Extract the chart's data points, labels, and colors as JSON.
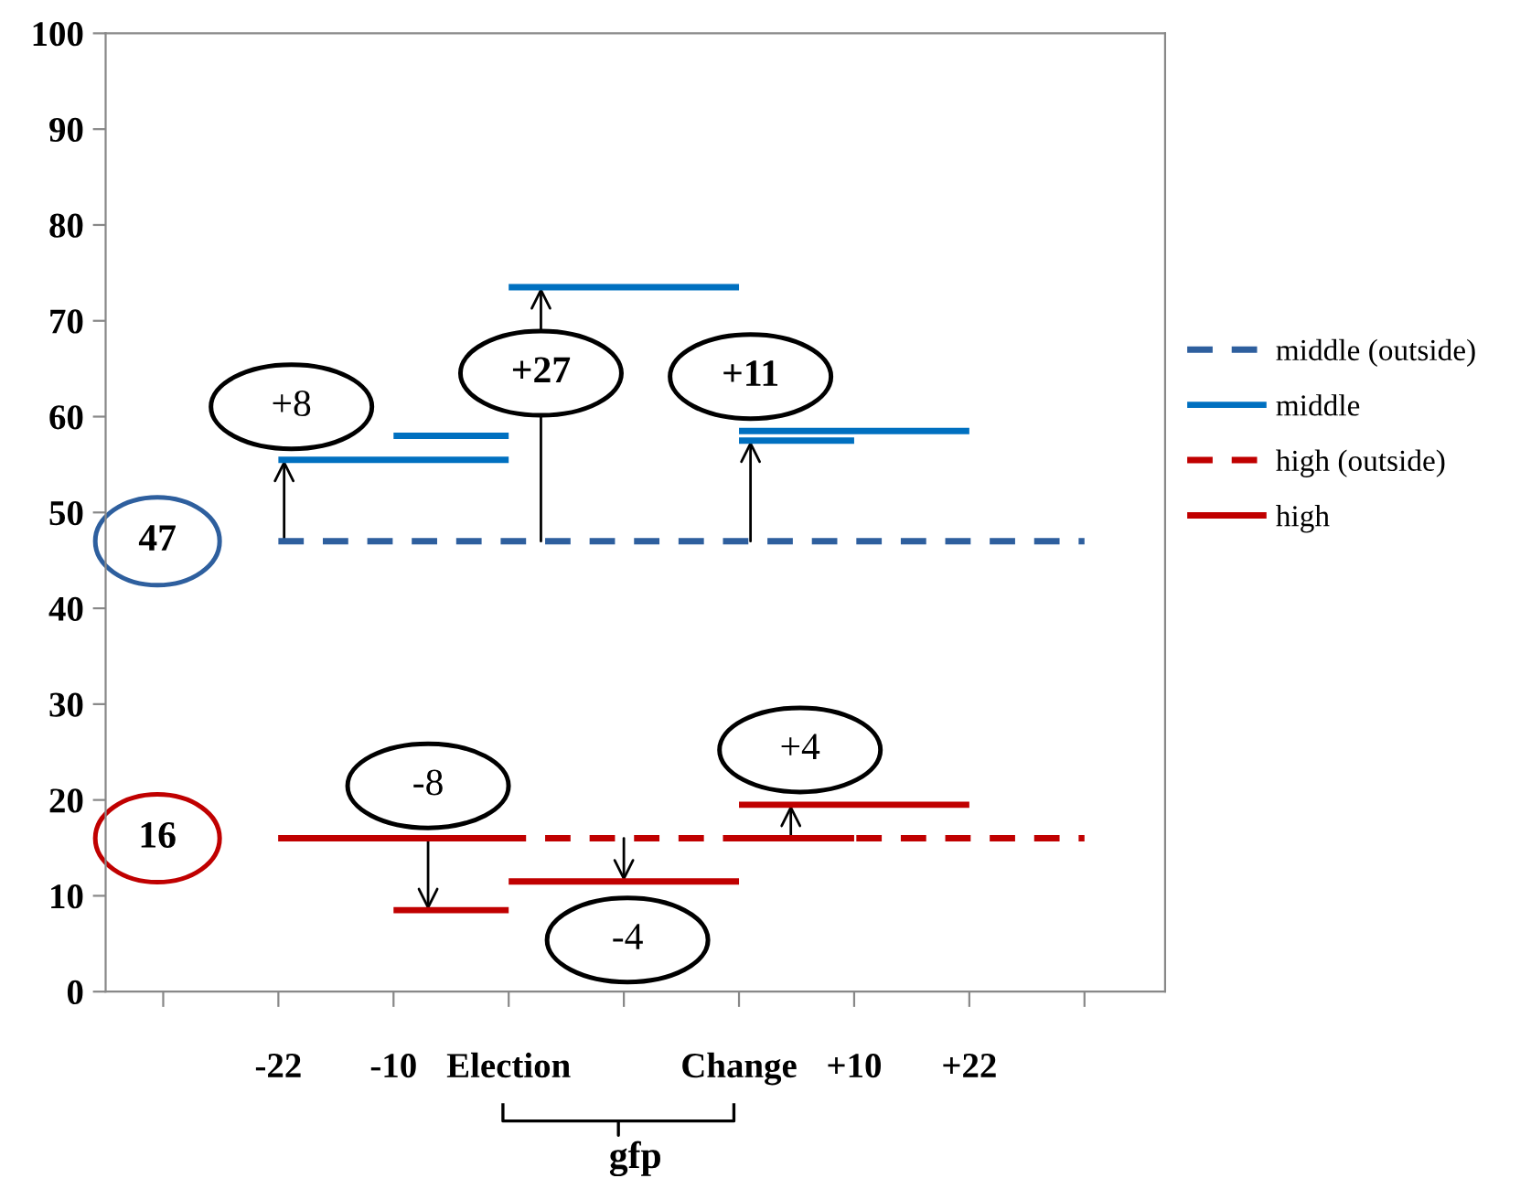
{
  "chart_data": {
    "type": "line",
    "xlabel": "gfp",
    "categories": [
      null,
      "-22",
      "-10",
      "Election",
      null,
      "Change",
      "+10",
      "+22",
      null
    ],
    "ylim": [
      0,
      100
    ],
    "yticks": [
      0,
      10,
      20,
      30,
      40,
      50,
      60,
      70,
      80,
      90,
      100
    ],
    "grid": false,
    "legend": "right",
    "marker": "none",
    "series": [
      {
        "name": "middle (outside)",
        "color": "#2e5f9e",
        "line_style": "dashed",
        "values": [
          null,
          47,
          47,
          47,
          47,
          47,
          47,
          47,
          47
        ]
      },
      {
        "name": "middle",
        "color": "#0070c0",
        "line_style": "solid",
        "values": [
          null,
          55.5,
          55.5,
          55.5,
          null,
          null,
          null,
          null,
          null
        ]
      },
      {
        "color": "#0070c0",
        "line_style": "solid",
        "values": [
          null,
          null,
          58,
          58,
          null,
          null,
          null,
          null,
          null
        ]
      },
      {
        "color": "#0070c0",
        "line_style": "solid",
        "values": [
          null,
          null,
          null,
          73.5,
          73.5,
          73.5,
          null,
          null,
          null
        ]
      },
      {
        "color": "#0070c0",
        "line_style": "solid",
        "values": [
          null,
          null,
          null,
          null,
          null,
          58.5,
          58.5,
          58.5,
          null
        ]
      },
      {
        "color": "#0070c0",
        "line_style": "solid",
        "values": [
          null,
          null,
          null,
          null,
          null,
          57.5,
          57.5,
          null,
          null
        ]
      },
      {
        "name": "high (outside)",
        "color": "#c00000",
        "line_style": "dashed",
        "values": [
          null,
          16,
          16,
          16,
          16,
          16,
          16,
          16,
          16
        ]
      },
      {
        "name": "high",
        "color": "#c00000",
        "line_style": "solid",
        "values": [
          null,
          16,
          16,
          16,
          null,
          null,
          null,
          null,
          null
        ]
      },
      {
        "color": "#c00000",
        "line_style": "solid",
        "values": [
          null,
          null,
          8.5,
          8.5,
          null,
          null,
          null,
          null,
          null
        ]
      },
      {
        "color": "#c00000",
        "line_style": "solid",
        "values": [
          null,
          null,
          null,
          11.5,
          11.5,
          11.5,
          null,
          null,
          null
        ]
      },
      {
        "color": "#c00000",
        "line_style": "solid",
        "values": [
          null,
          null,
          null,
          null,
          null,
          16,
          16,
          null,
          null
        ]
      },
      {
        "color": "#c00000",
        "line_style": "solid",
        "values": [
          null,
          null,
          null,
          null,
          null,
          19.5,
          19.5,
          19.5,
          null
        ]
      }
    ],
    "annotations": [
      "47",
      {
        "text": "+8",
        "y": 55.5
      },
      {
        "text": "+27",
        "y": 73.5
      },
      {
        "text": "+11",
        "y": 57.5
      },
      "16",
      {
        "text": "-8",
        "y": 8.5
      },
      {
        "text": "-4",
        "y": 11.5
      },
      {
        "text": "+4",
        "y": 19.5
      }
    ]
  }
}
